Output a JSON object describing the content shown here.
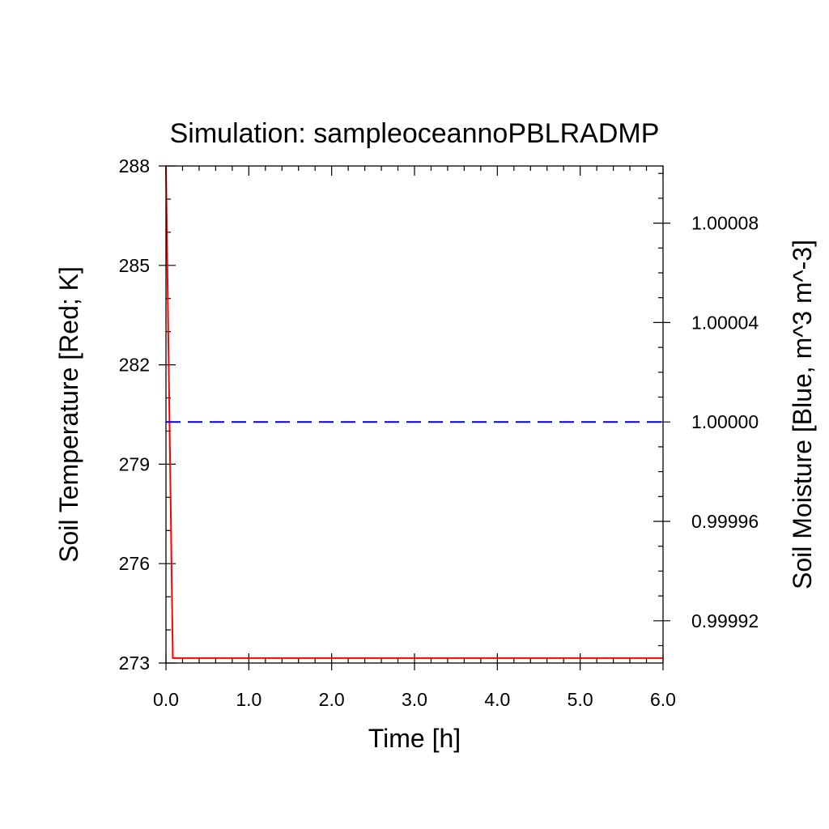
{
  "chart_data": {
    "type": "line",
    "title": "Simulation: sampleoceannoPBLRADMP",
    "xlabel": "Time [h]",
    "ylabel": "Soil Temperature [Red; K]",
    "y2label": "Soil Moisture [Blue, m^3 m^-3]",
    "xlim": [
      0.0,
      6.0
    ],
    "ylim": [
      273,
      288
    ],
    "y2lim": [
      0.999903,
      1.000103
    ],
    "x_ticks": [
      "0.0",
      "1.0",
      "2.0",
      "3.0",
      "4.0",
      "5.0",
      "6.0"
    ],
    "y_ticks": [
      "273",
      "276",
      "279",
      "282",
      "285",
      "288"
    ],
    "y2_ticks": [
      "0.99992",
      "0.99996",
      "1.00000",
      "1.00004",
      "1.00008"
    ],
    "grid": false,
    "series": [
      {
        "axis": "left",
        "color": "#ff0000",
        "style": "solid",
        "x": [
          0.0,
          0.083,
          6.0
        ],
        "y": [
          288.0,
          273.15,
          273.15
        ]
      },
      {
        "axis": "right",
        "color": "#0000cc",
        "style": "dashed",
        "x": [
          0.0,
          6.0
        ],
        "y": [
          1.0,
          1.0
        ]
      }
    ]
  }
}
